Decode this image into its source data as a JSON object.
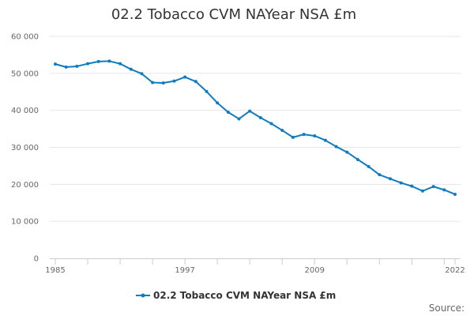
{
  "chart_data": {
    "type": "line",
    "title": "02.2 Tobacco CVM NAYear NSA £m",
    "xlabel": "",
    "ylabel": "",
    "x": [
      1985,
      1986,
      1987,
      1988,
      1989,
      1990,
      1991,
      1992,
      1993,
      1994,
      1995,
      1996,
      1997,
      1998,
      1999,
      2000,
      2001,
      2002,
      2003,
      2004,
      2005,
      2006,
      2007,
      2008,
      2009,
      2010,
      2011,
      2012,
      2013,
      2014,
      2015,
      2016,
      2017,
      2018,
      2019,
      2020,
      2021,
      2022
    ],
    "series": [
      {
        "name": "02.2 Tobacco CVM NAYear NSA £m",
        "color": "#0f7cc0",
        "values": [
          52500,
          51700,
          51900,
          52600,
          53200,
          53300,
          52600,
          51100,
          49900,
          47500,
          47400,
          47900,
          49000,
          47800,
          45100,
          42000,
          39500,
          37700,
          39800,
          38000,
          36400,
          34600,
          32700,
          33500,
          33100,
          31900,
          30200,
          28700,
          26700,
          24800,
          22600,
          21500,
          20400,
          19500,
          18200,
          19400,
          18500,
          17300
        ]
      }
    ],
    "ylim": [
      0,
      60000
    ],
    "yticks": [
      0,
      10000,
      20000,
      30000,
      40000,
      50000,
      60000
    ],
    "ytick_labels": [
      "0",
      "10 000",
      "20 000",
      "30 000",
      "40 000",
      "50 000",
      "60 000"
    ],
    "xtick_labels": [
      "1985",
      "1997",
      "2009",
      "2022"
    ],
    "xtick_values": [
      1985,
      1997,
      2009,
      2022
    ],
    "grid": true,
    "legend": "bottom-center",
    "source_label": "Source:"
  }
}
